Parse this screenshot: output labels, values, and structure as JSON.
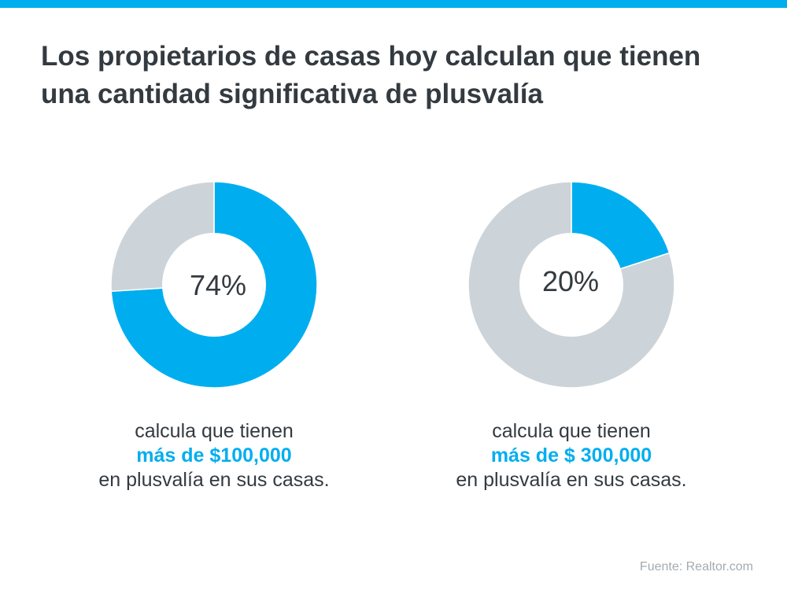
{
  "title": "Los propietarios de casas hoy calculan que tienen una cantidad significativa de plusvalía",
  "colors": {
    "accent": "#00aeef",
    "remainder": "#ccd4d9",
    "text": "#333a40",
    "source": "#a3abb2"
  },
  "chart_data": [
    {
      "type": "pie",
      "values": [
        74,
        26
      ],
      "center_label": "74%",
      "caption": {
        "line1": "calcula que tienen",
        "highlight": "más de $100,000",
        "line3": "en plusvalía en sus casas."
      }
    },
    {
      "type": "pie",
      "values": [
        20,
        80
      ],
      "center_label": "20%",
      "caption": {
        "line1": "calcula que tienen",
        "highlight": "más de $ 300,000",
        "line3": "en plusvalía en sus casas."
      }
    }
  ],
  "source": "Fuente: Realtor.com"
}
